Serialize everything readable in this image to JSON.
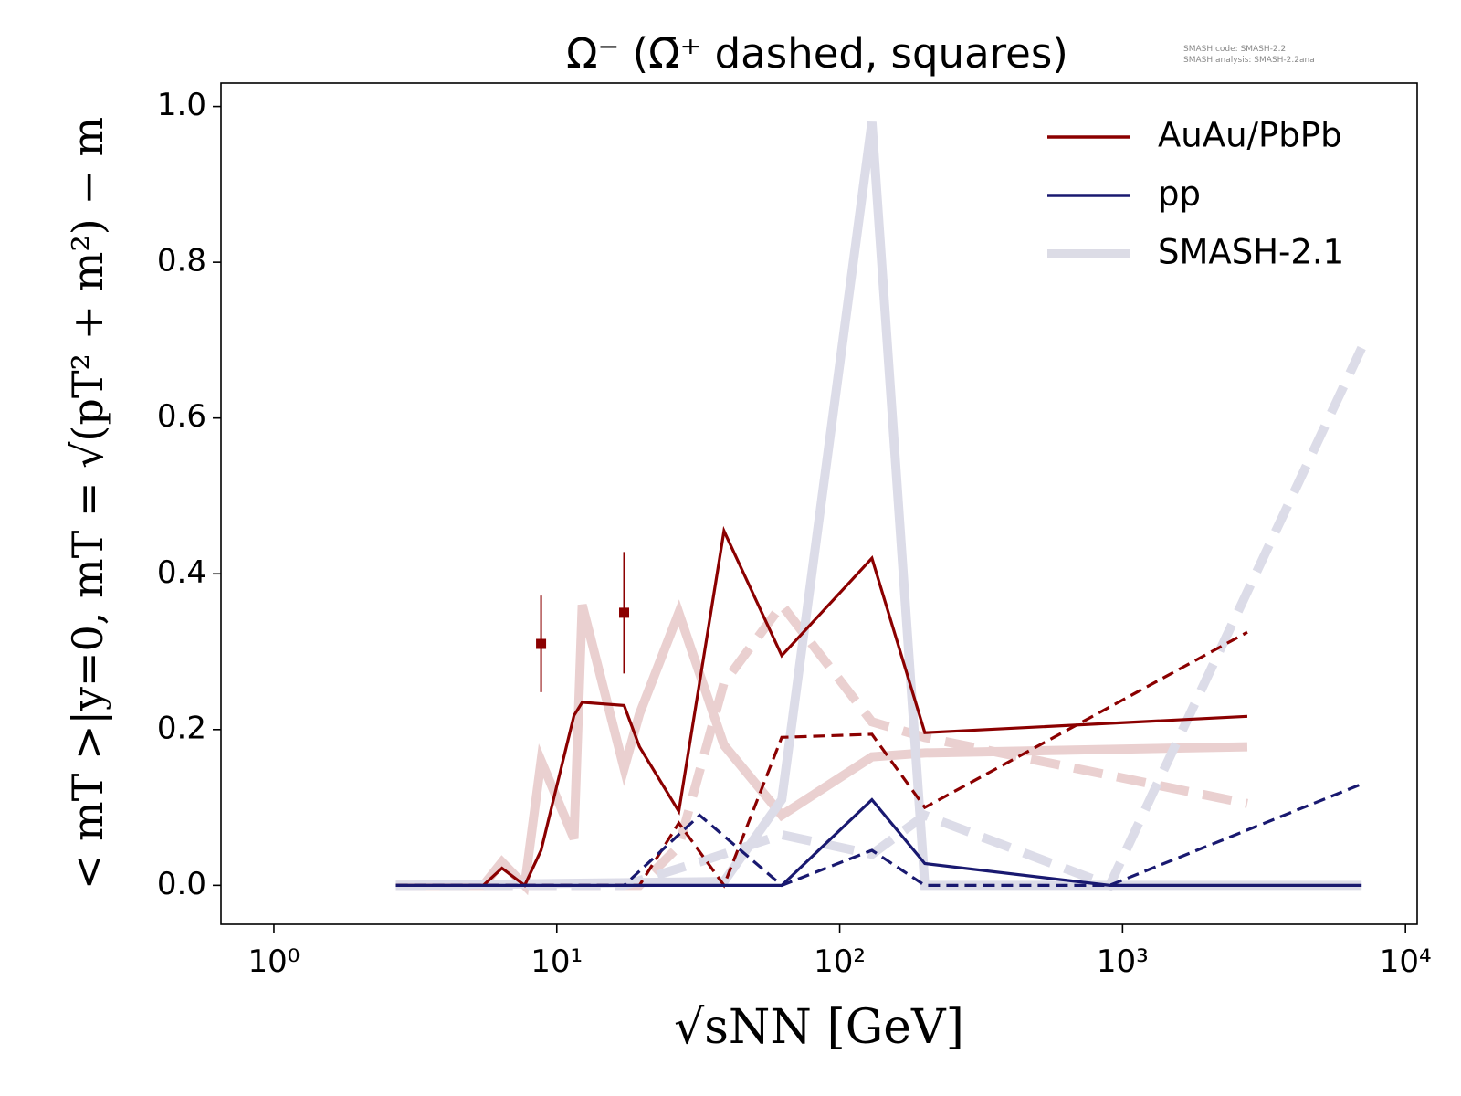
{
  "chart_data": {
    "type": "line",
    "title": "Ω⁻ (Ω̄⁺ dashed, squares)",
    "annotations": [
      "SMASH code:      SMASH-2.2",
      "SMASH analysis: SMASH-2.2ana"
    ],
    "xlabel": "√sNN [GeV]",
    "ylabel": "< mT >|y=0, mT = √(pT² + m²) − m",
    "xscale": "log",
    "xlim": [
      0.65,
      11000
    ],
    "ylim": [
      -0.05,
      1.03
    ],
    "xticks": [
      {
        "value": 1,
        "label": "10⁰"
      },
      {
        "value": 10,
        "label": "10¹"
      },
      {
        "value": 100,
        "label": "10²"
      },
      {
        "value": 1000,
        "label": "10³"
      },
      {
        "value": 10000,
        "label": "10⁴"
      }
    ],
    "yticks": [
      {
        "value": 0,
        "label": "0.0"
      },
      0.2,
      0.4,
      0.6,
      0.8,
      {
        "value": 1,
        "label": "1.0"
      }
    ],
    "legend_position": "upper right",
    "legend": [
      {
        "name": "AuAu/PbPb",
        "color": "#8b0000"
      },
      {
        "name": "pp",
        "color": "#191970"
      },
      {
        "name": "SMASH-2.1",
        "color": "#dcdce6"
      }
    ],
    "series": [
      {
        "color": "#ead0d0",
        "style": "solid",
        "weight": "thick",
        "x": [
          2.7,
          5.5,
          6.4,
          7.7,
          8.8,
          11.5,
          12.3,
          17.3,
          19.6,
          27,
          39,
          62.4,
          130,
          200,
          2760
        ],
        "values": [
          0,
          0,
          0.03,
          0,
          0.16,
          0.06,
          0.36,
          0.15,
          0.22,
          0.35,
          0.18,
          0.09,
          0.165,
          0.17,
          0.178
        ]
      },
      {
        "color": "#ead0d0",
        "style": "dashed",
        "weight": "thick",
        "x": [
          2.7,
          5.5,
          6.4,
          7.7,
          8.8,
          11.5,
          12.3,
          17.3,
          19.6,
          27,
          39,
          62.4,
          130,
          200,
          2760
        ],
        "values": [
          0,
          0,
          0,
          0,
          0,
          0,
          0,
          0,
          0,
          0.05,
          0.26,
          0.36,
          0.21,
          0.19,
          0.105
        ]
      },
      {
        "color": "#dcdce8",
        "style": "solid",
        "weight": "thick",
        "x": [
          2.7,
          39,
          62.4,
          130,
          200,
          900,
          7000
        ],
        "values": [
          0,
          0.005,
          0.11,
          0.98,
          0,
          0,
          0
        ]
      },
      {
        "color": "#dcdce8",
        "style": "dashed",
        "weight": "thick",
        "x": [
          2.7,
          17.3,
          32,
          62.4,
          130,
          200,
          900,
          7000
        ],
        "values": [
          0,
          0,
          0.03,
          0.065,
          0.04,
          0.09,
          0,
          0.69
        ]
      },
      {
        "color": "#8b0000",
        "style": "solid",
        "weight": "normal",
        "x": [
          2.7,
          5.5,
          6.4,
          7.7,
          8.8,
          11.5,
          12.3,
          17.3,
          19.6,
          27,
          39,
          62.4,
          130,
          200,
          2760
        ],
        "values": [
          0,
          0,
          0.022,
          0,
          0.045,
          0.218,
          0.235,
          0.231,
          0.178,
          0.095,
          0.455,
          0.295,
          0.42,
          0.196,
          0.217
        ]
      },
      {
        "color": "#8b0000",
        "style": "dashed",
        "weight": "normal",
        "x": [
          2.7,
          5.5,
          6.4,
          7.7,
          8.8,
          11.5,
          12.3,
          17.3,
          19.6,
          27,
          39,
          62.4,
          130,
          200,
          2760
        ],
        "values": [
          0,
          0,
          0,
          0,
          0,
          0,
          0,
          0,
          0,
          0.08,
          0,
          0.19,
          0.194,
          0.1,
          0.325
        ]
      },
      {
        "color": "#191970",
        "style": "solid",
        "weight": "normal",
        "x": [
          2.7,
          62.4,
          130,
          200,
          900,
          7000
        ],
        "values": [
          0,
          0,
          0.11,
          0.028,
          0,
          0
        ]
      },
      {
        "color": "#191970",
        "style": "dashed",
        "weight": "normal",
        "x": [
          2.7,
          17.3,
          32,
          62.4,
          130,
          200,
          900,
          7000
        ],
        "values": [
          0,
          0,
          0.09,
          0,
          0.045,
          0,
          0,
          0.13
        ]
      }
    ],
    "points": {
      "color": "#8b0000",
      "marker": "square",
      "x": [
        8.8,
        17.3
      ],
      "values": [
        0.31,
        0.35
      ],
      "errors": [
        0.062,
        0.078
      ]
    }
  }
}
